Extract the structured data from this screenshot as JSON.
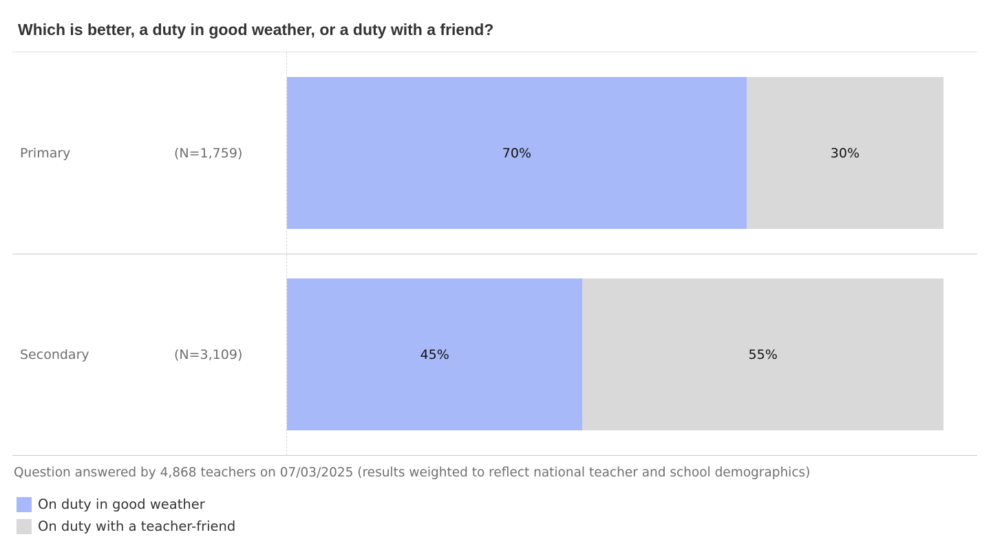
{
  "chart_data": {
    "type": "bar",
    "orientation": "horizontal",
    "stacked": true,
    "title": "Which is better, a duty in good weather, or a duty with a friend?",
    "categories": [
      "Primary",
      "Secondary"
    ],
    "sample_sizes": [
      "(N=1,759)",
      "(N=3,109)"
    ],
    "series": [
      {
        "name": "On duty in good weather",
        "color": "#a7b9f9",
        "values": [
          70,
          45
        ],
        "labels": [
          "70%",
          "45%"
        ]
      },
      {
        "name": "On duty with a teacher-friend",
        "color": "#d9d9d9",
        "values": [
          30,
          55
        ],
        "labels": [
          "30%",
          "55%"
        ]
      }
    ],
    "xlim": [
      0,
      100
    ],
    "legend_position": "bottom-left",
    "footnote": "Question answered by 4,868 teachers on 07/03/2025 (results weighted to reflect national teacher and school demographics)"
  }
}
